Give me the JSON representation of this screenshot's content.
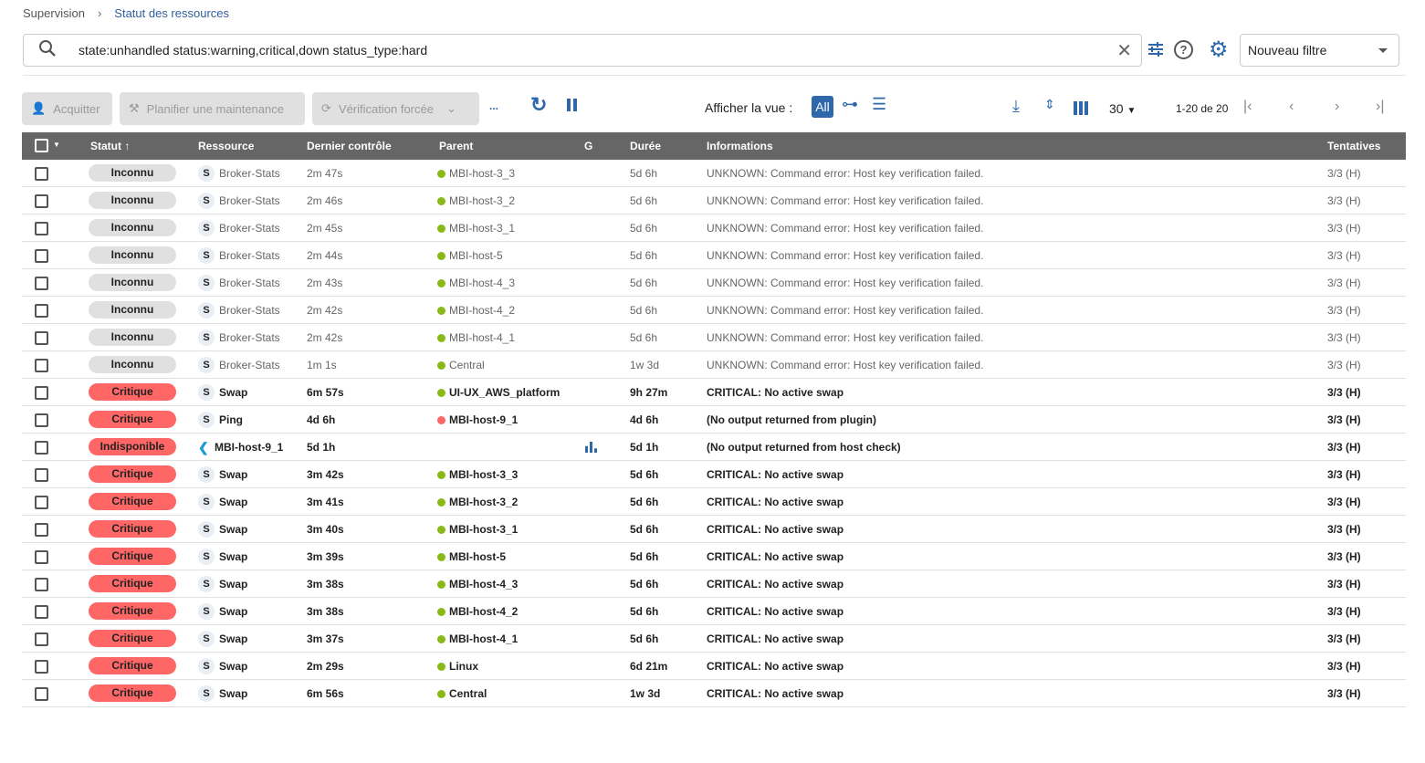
{
  "breadcrumb": {
    "root": "Supervision",
    "current": "Statut des ressources"
  },
  "search": {
    "value": "state:unhandled status:warning,critical,down status_type:hard"
  },
  "filter": {
    "selected": "Nouveau filtre"
  },
  "toolbar": {
    "acknowledge": "Acquitter",
    "downtime": "Planifier une maintenance",
    "check": "Vérification forcée",
    "more": "...",
    "view_label": "Afficher la vue :",
    "view_all": "All",
    "per_page": "30",
    "pagination": "1-20 de 20"
  },
  "colors": {
    "accent": "#2e68aa",
    "critical": "#ff6666",
    "unknown": "#e0e0e0",
    "ok": "#88b917",
    "header": "#666666"
  },
  "columns": {
    "status": "Statut",
    "resource": "Ressource",
    "last_check": "Dernier contrôle",
    "parent": "Parent",
    "graph": "G",
    "duration": "Durée",
    "info": "Informations",
    "tries": "Tentatives"
  },
  "rows": [
    {
      "status": "Inconnu",
      "resource": "Broker-Stats",
      "last": "2m 47s",
      "parent": "MBI-host-3_3",
      "duration": "5d 6h",
      "info": "UNKNOWN: Command error: Host key verification failed.",
      "tries": "3/3 (H)"
    },
    {
      "status": "Inconnu",
      "resource": "Broker-Stats",
      "last": "2m 46s",
      "parent": "MBI-host-3_2",
      "duration": "5d 6h",
      "info": "UNKNOWN: Command error: Host key verification failed.",
      "tries": "3/3 (H)"
    },
    {
      "status": "Inconnu",
      "resource": "Broker-Stats",
      "last": "2m 45s",
      "parent": "MBI-host-3_1",
      "duration": "5d 6h",
      "info": "UNKNOWN: Command error: Host key verification failed.",
      "tries": "3/3 (H)"
    },
    {
      "status": "Inconnu",
      "resource": "Broker-Stats",
      "last": "2m 44s",
      "parent": "MBI-host-5",
      "duration": "5d 6h",
      "info": "UNKNOWN: Command error: Host key verification failed.",
      "tries": "3/3 (H)"
    },
    {
      "status": "Inconnu",
      "resource": "Broker-Stats",
      "last": "2m 43s",
      "parent": "MBI-host-4_3",
      "duration": "5d 6h",
      "info": "UNKNOWN: Command error: Host key verification failed.",
      "tries": "3/3 (H)"
    },
    {
      "status": "Inconnu",
      "resource": "Broker-Stats",
      "last": "2m 42s",
      "parent": "MBI-host-4_2",
      "duration": "5d 6h",
      "info": "UNKNOWN: Command error: Host key verification failed.",
      "tries": "3/3 (H)"
    },
    {
      "status": "Inconnu",
      "resource": "Broker-Stats",
      "last": "2m 42s",
      "parent": "MBI-host-4_1",
      "duration": "5d 6h",
      "info": "UNKNOWN: Command error: Host key verification failed.",
      "tries": "3/3 (H)"
    },
    {
      "status": "Inconnu",
      "resource": "Broker-Stats",
      "last": "1m 1s",
      "parent": "Central",
      "duration": "1w 3d",
      "info": "UNKNOWN: Command error: Host key verification failed.",
      "tries": "3/3 (H)"
    },
    {
      "status": "Critique",
      "resource": "Swap",
      "last": "6m 57s",
      "parent": "UI-UX_AWS_platform",
      "duration": "9h 27m",
      "info": "CRITICAL: No active swap",
      "tries": "3/3 (H)"
    },
    {
      "status": "Critique",
      "resource": "Ping",
      "last": "4d 6h",
      "parent": "MBI-host-9_1",
      "parent_status": "down",
      "duration": "4d 6h",
      "info": "(No output returned from plugin)",
      "tries": "3/3 (H)"
    },
    {
      "status": "Indisponible",
      "resource": "MBI-host-9_1",
      "type": "host",
      "last": "5d 1h",
      "parent": "",
      "graph": true,
      "duration": "5d 1h",
      "info": "(No output returned from host check)",
      "tries": "3/3 (H)"
    },
    {
      "status": "Critique",
      "resource": "Swap",
      "last": "3m 42s",
      "parent": "MBI-host-3_3",
      "duration": "5d 6h",
      "info": "CRITICAL: No active swap",
      "tries": "3/3 (H)"
    },
    {
      "status": "Critique",
      "resource": "Swap",
      "last": "3m 41s",
      "parent": "MBI-host-3_2",
      "duration": "5d 6h",
      "info": "CRITICAL: No active swap",
      "tries": "3/3 (H)"
    },
    {
      "status": "Critique",
      "resource": "Swap",
      "last": "3m 40s",
      "parent": "MBI-host-3_1",
      "duration": "5d 6h",
      "info": "CRITICAL: No active swap",
      "tries": "3/3 (H)"
    },
    {
      "status": "Critique",
      "resource": "Swap",
      "last": "3m 39s",
      "parent": "MBI-host-5",
      "duration": "5d 6h",
      "info": "CRITICAL: No active swap",
      "tries": "3/3 (H)"
    },
    {
      "status": "Critique",
      "resource": "Swap",
      "last": "3m 38s",
      "parent": "MBI-host-4_3",
      "duration": "5d 6h",
      "info": "CRITICAL: No active swap",
      "tries": "3/3 (H)"
    },
    {
      "status": "Critique",
      "resource": "Swap",
      "last": "3m 38s",
      "parent": "MBI-host-4_2",
      "duration": "5d 6h",
      "info": "CRITICAL: No active swap",
      "tries": "3/3 (H)"
    },
    {
      "status": "Critique",
      "resource": "Swap",
      "last": "3m 37s",
      "parent": "MBI-host-4_1",
      "duration": "5d 6h",
      "info": "CRITICAL: No active swap",
      "tries": "3/3 (H)"
    },
    {
      "status": "Critique",
      "resource": "Swap",
      "last": "2m 29s",
      "parent": "Linux",
      "duration": "6d 21m",
      "info": "CRITICAL: No active swap",
      "tries": "3/3 (H)"
    },
    {
      "status": "Critique",
      "resource": "Swap",
      "last": "6m 56s",
      "parent": "Central",
      "duration": "1w 3d",
      "info": "CRITICAL: No active swap",
      "tries": "3/3 (H)"
    }
  ]
}
